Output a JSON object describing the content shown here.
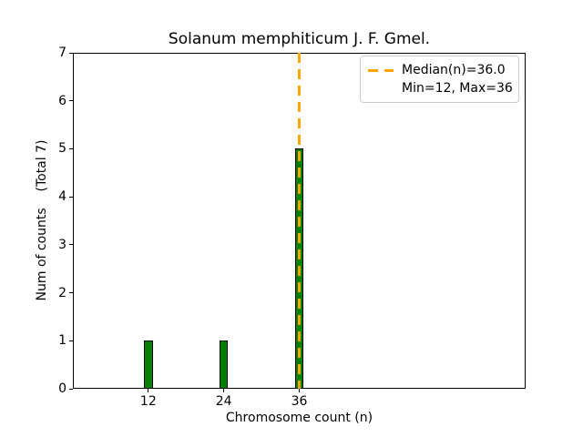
{
  "chart_data": {
    "type": "bar",
    "title": "Solanum memphiticum J. F. Gmel.",
    "xlabel": "Chromosome count (n)",
    "ylabel": "Num of counts    (Total 7)",
    "x": [
      12,
      24,
      36
    ],
    "counts": [
      1,
      1,
      5
    ],
    "total_counts": 7,
    "xticks": [
      12,
      24,
      36
    ],
    "yticks": [
      0,
      1,
      2,
      3,
      4,
      5,
      6,
      7
    ],
    "xlim": [
      0,
      72
    ],
    "ylim": [
      0,
      7
    ],
    "grid": false,
    "bar_color": "#008000",
    "bar_edge_color": "#000000",
    "bar_width_units": 1.4,
    "median_line": {
      "value": 36.0,
      "color": "#FFA500",
      "style": "dashed"
    },
    "legend": {
      "position": "upper right",
      "entries": [
        {
          "label": "Median(n)=36.0",
          "sample": "dashed-line",
          "color": "#FFA500"
        },
        {
          "label": "Min=12, Max=36",
          "sample": "none"
        }
      ]
    }
  }
}
